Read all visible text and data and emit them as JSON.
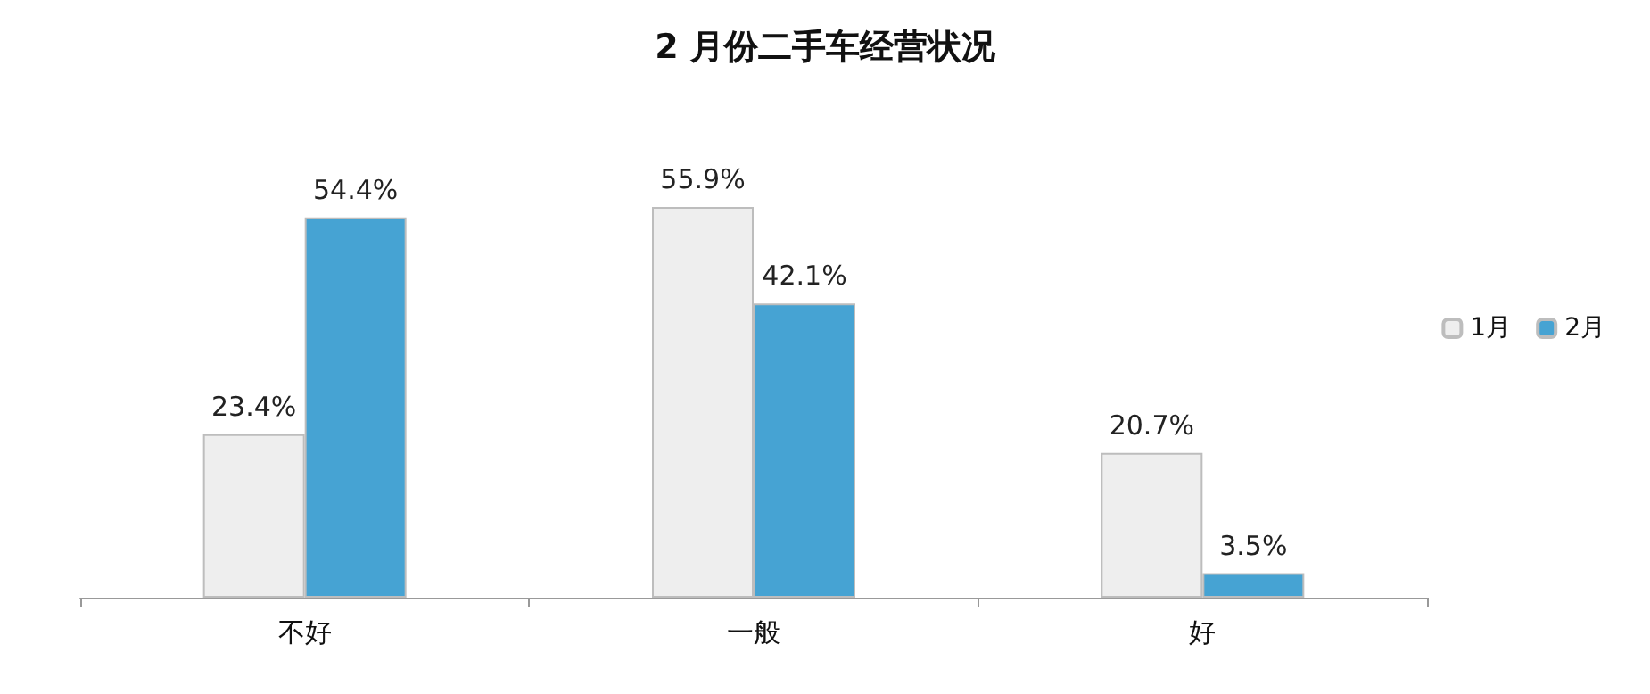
{
  "chart_data": {
    "type": "bar",
    "title": "2 月份二手车经营状况",
    "categories": [
      "不好",
      "一般",
      "好"
    ],
    "series": [
      {
        "name": "1月",
        "color": "#eeeeee",
        "values": [
          23.4,
          55.9,
          20.7
        ],
        "value_labels": [
          "23.4%",
          "55.9%",
          "20.7%"
        ]
      },
      {
        "name": "2月",
        "color": "#46a3d3",
        "values": [
          54.4,
          42.1,
          3.5
        ],
        "value_labels": [
          "54.4%",
          "42.1%",
          "3.5%"
        ]
      }
    ],
    "legend": "right",
    "grid": false,
    "tick_labels": "x"
  }
}
